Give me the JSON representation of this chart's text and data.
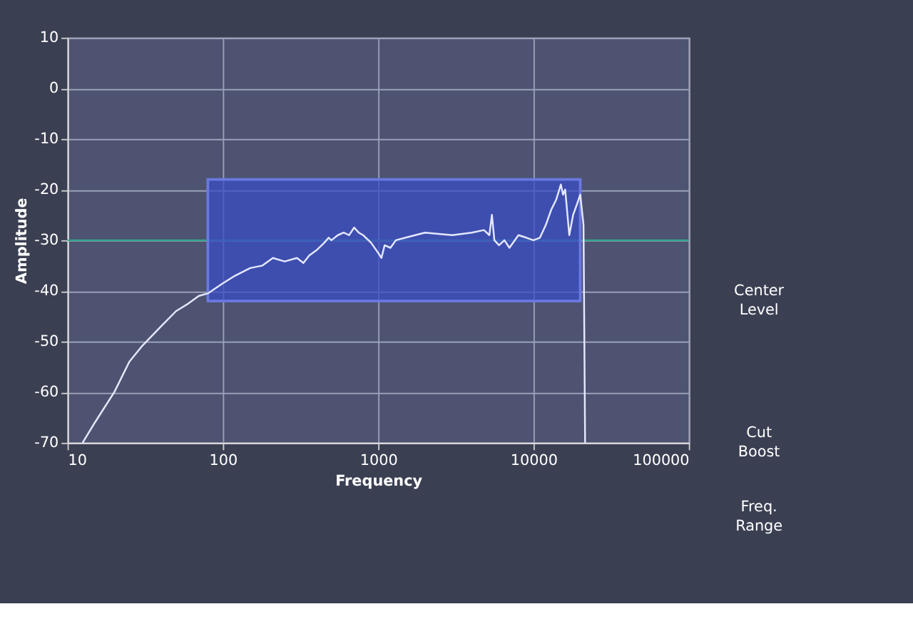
{
  "chart_data": {
    "type": "line",
    "xlabel": "Frequency",
    "ylabel": "Amplitude",
    "log": "x",
    "grid": true,
    "xlim": [
      10,
      100000
    ],
    "xticks": [
      10,
      100,
      1000,
      10000,
      100000
    ],
    "ylim": [
      -70,
      10
    ],
    "yticks": [
      -70,
      -60,
      -50,
      -40,
      -30,
      -20,
      -10,
      0,
      10
    ],
    "x": [
      12.5,
      15,
      20,
      25,
      30,
      40,
      50,
      60,
      70,
      80,
      100,
      120,
      150,
      180,
      210,
      250,
      300,
      330,
      360,
      400,
      450,
      480,
      500,
      550,
      600,
      650,
      700,
      750,
      800,
      900,
      1000,
      1050,
      1100,
      1200,
      1300,
      1500,
      2000,
      3000,
      4000,
      4800,
      5200,
      5400,
      5600,
      6000,
      6500,
      7000,
      8000,
      9000,
      10000,
      11000,
      12000,
      13000,
      14000,
      15000,
      15500,
      16000,
      17000,
      18000,
      19000,
      20000,
      21000,
      21500
    ],
    "series": [
      {
        "type": "area",
        "color": "#3a4cc4",
        "x": [
          80,
          20000
        ],
        "lower": [
          -42,
          -42
        ],
        "upper": [
          -18,
          -18
        ],
        "values": [
          null,
          null
        ]
      },
      {
        "color": "#e4e8ff",
        "values": [
          -70,
          -66,
          -60,
          -54,
          -51,
          -47,
          -44,
          -42.5,
          -41,
          -40.5,
          -38.5,
          -37,
          -35.5,
          -35,
          -33.5,
          -34.2,
          -33.5,
          -34.5,
          -33,
          -32,
          -30.5,
          -29.5,
          -30,
          -29,
          -28.5,
          -29,
          -27.5,
          -28.5,
          -29,
          -30.5,
          -32.5,
          -33.5,
          -31,
          -31.5,
          -30,
          -29.5,
          -28.5,
          -29,
          -28.5,
          -28,
          -29,
          -25,
          -30,
          -31,
          -30,
          -31.5,
          -29,
          -29.5,
          -30,
          -29.5,
          -27,
          -24,
          -22,
          -19,
          -21,
          -20,
          -29,
          -25,
          -23,
          -21,
          -27,
          -70
        ]
      }
    ],
    "ref_lines": [
      {
        "axis": "y",
        "value": -30,
        "color": "#2fa58a"
      }
    ],
    "annotations": [
      "Center Level",
      "Cut Boost",
      "Freq. Range"
    ]
  }
}
